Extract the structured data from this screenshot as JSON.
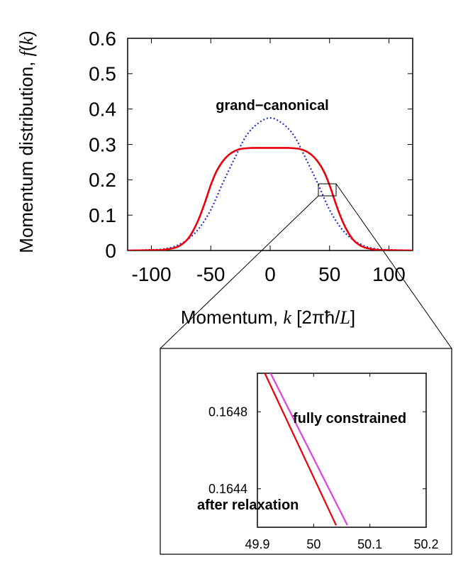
{
  "chart_data": [
    {
      "type": "line",
      "xlabel": "Momentum, k  [2πħ/L]",
      "ylabel": "Momentum distribution, f(k)",
      "xlim": [
        -120,
        120
      ],
      "ylim": [
        0,
        0.6
      ],
      "x_ticks": [
        -100,
        -50,
        0,
        50,
        100
      ],
      "y_ticks": [
        0,
        0.1,
        0.2,
        0.3,
        0.4,
        0.5,
        0.6
      ],
      "x_tick_labels": [
        "-100",
        "-50",
        "0",
        "50",
        "100"
      ],
      "y_tick_labels": [
        "0",
        "0.1",
        "0.2",
        "0.3",
        "0.4",
        "0.5",
        "0.6"
      ],
      "grid": false,
      "series": [
        {
          "name": "grand-canonical",
          "style": "dotted",
          "color": "#1f2fd0",
          "x": [
            -120,
            -110,
            -100,
            -90,
            -80,
            -70,
            -60,
            -50,
            -40,
            -30,
            -20,
            -10,
            0,
            10,
            20,
            30,
            40,
            50,
            60,
            70,
            80,
            90,
            100,
            110,
            120
          ],
          "y": [
            0.0003,
            0.001,
            0.002,
            0.004,
            0.012,
            0.03,
            0.062,
            0.115,
            0.19,
            0.26,
            0.325,
            0.36,
            0.375,
            0.36,
            0.325,
            0.26,
            0.19,
            0.115,
            0.062,
            0.03,
            0.012,
            0.004,
            0.002,
            0.001,
            0.0003
          ]
        },
        {
          "name": "after relaxation",
          "style": "solid",
          "color": "#e8000b",
          "x": [
            -120,
            -100,
            -90,
            -80,
            -75,
            -70,
            -65,
            -60,
            -55,
            -50,
            -45,
            -40,
            -35,
            -30,
            -25,
            -20,
            -15,
            -10,
            -5,
            0,
            5,
            10,
            15,
            20,
            25,
            30,
            35,
            40,
            45,
            50,
            55,
            60,
            65,
            70,
            75,
            80,
            90,
            100,
            120
          ],
          "y": [
            0.0,
            0.001,
            0.002,
            0.008,
            0.016,
            0.03,
            0.055,
            0.09,
            0.135,
            0.185,
            0.225,
            0.252,
            0.27,
            0.281,
            0.287,
            0.289,
            0.29,
            0.29,
            0.29,
            0.29,
            0.29,
            0.29,
            0.29,
            0.289,
            0.287,
            0.281,
            0.27,
            0.252,
            0.225,
            0.185,
            0.135,
            0.09,
            0.055,
            0.03,
            0.016,
            0.008,
            0.002,
            0.001,
            0.0
          ]
        }
      ],
      "annotations": [
        "grand−canonical"
      ]
    },
    {
      "type": "line",
      "xlim": [
        49.9,
        50.2
      ],
      "ylim": [
        0.1642,
        0.165
      ],
      "x_ticks": [
        49.9,
        50,
        50.1,
        50.2
      ],
      "y_ticks": [
        0.1644,
        0.1648
      ],
      "x_tick_labels": [
        "49.9",
        "50",
        "50.1",
        "50.2"
      ],
      "y_tick_labels": [
        "0.1644",
        "0.1648"
      ],
      "series": [
        {
          "name": "after relaxation",
          "style": "solid",
          "color": "#e8000b",
          "x": [
            49.91,
            50.04
          ],
          "y": [
            0.16502,
            0.16421
          ]
        },
        {
          "name": "fully constrained",
          "style": "solid",
          "color": "#e040e0",
          "x": [
            49.92,
            50.06
          ],
          "y": [
            0.16502,
            0.16421
          ]
        }
      ],
      "annotations": [
        "fully constrained",
        "after relaxation"
      ]
    }
  ]
}
